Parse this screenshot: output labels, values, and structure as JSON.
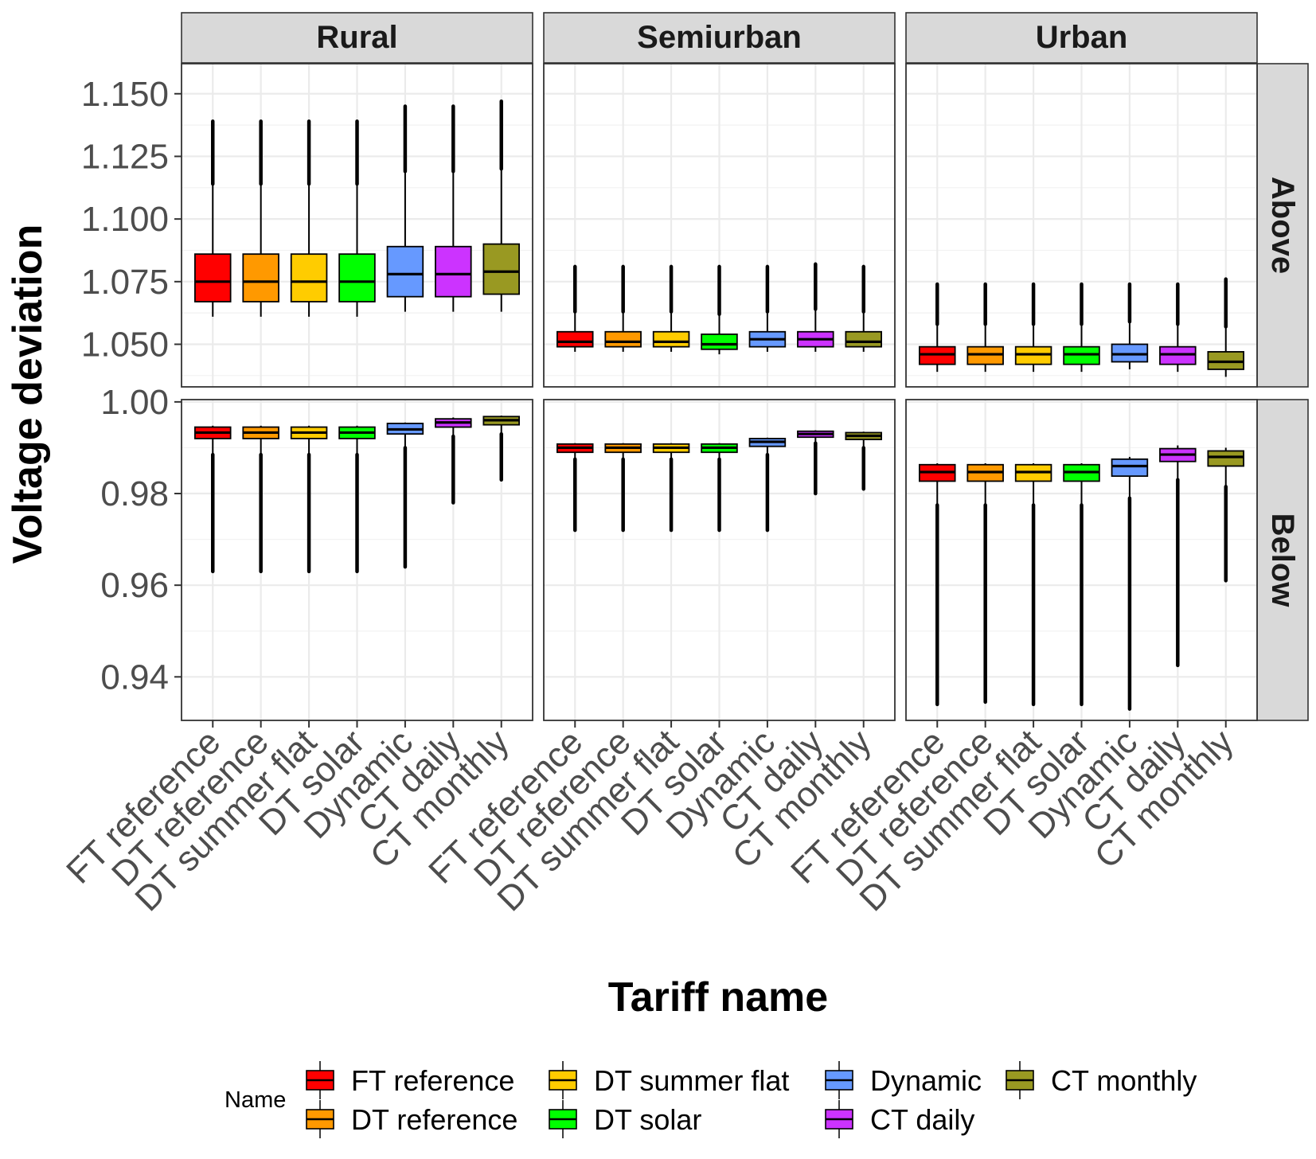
{
  "chart_data": {
    "type": "boxplot",
    "title": "",
    "xlabel": "Tariff name",
    "ylabel": "Voltage deviation",
    "categories": [
      "FT reference",
      "DT reference",
      "DT summer flat",
      "DT solar",
      "Dynamic",
      "CT daily",
      "CT monthly"
    ],
    "column_facets": [
      "Rural",
      "Semiurban",
      "Urban"
    ],
    "row_facets": [
      "Above",
      "Below"
    ],
    "colors": [
      "#ff0000",
      "#ff9900",
      "#ffcc00",
      "#00ff00",
      "#6699ff",
      "#cc33ff",
      "#999922"
    ],
    "rows": [
      {
        "name": "Above",
        "ylim": [
          1.033,
          1.162
        ],
        "ticks": [
          1.05,
          1.075,
          1.1,
          1.125,
          1.15
        ],
        "tick_labels": [
          "1.050",
          "1.075",
          "1.100",
          "1.125",
          "1.150"
        ],
        "panels": [
          {
            "facet": "Rural",
            "boxes": [
              {
                "q1": 1.067,
                "median": 1.075,
                "q3": 1.086,
                "whisker_low": 1.061,
                "whisker_high": 1.114,
                "outlier_max": 1.139
              },
              {
                "q1": 1.067,
                "median": 1.075,
                "q3": 1.086,
                "whisker_low": 1.061,
                "whisker_high": 1.114,
                "outlier_max": 1.139
              },
              {
                "q1": 1.067,
                "median": 1.075,
                "q3": 1.086,
                "whisker_low": 1.061,
                "whisker_high": 1.114,
                "outlier_max": 1.139
              },
              {
                "q1": 1.067,
                "median": 1.075,
                "q3": 1.086,
                "whisker_low": 1.061,
                "whisker_high": 1.114,
                "outlier_max": 1.139
              },
              {
                "q1": 1.069,
                "median": 1.078,
                "q3": 1.089,
                "whisker_low": 1.063,
                "whisker_high": 1.119,
                "outlier_max": 1.145
              },
              {
                "q1": 1.069,
                "median": 1.078,
                "q3": 1.089,
                "whisker_low": 1.063,
                "whisker_high": 1.119,
                "outlier_max": 1.145
              },
              {
                "q1": 1.07,
                "median": 1.079,
                "q3": 1.09,
                "whisker_low": 1.063,
                "whisker_high": 1.12,
                "outlier_max": 1.147
              }
            ]
          },
          {
            "facet": "Semiurban",
            "boxes": [
              {
                "q1": 1.049,
                "median": 1.051,
                "q3": 1.055,
                "whisker_low": 1.047,
                "whisker_high": 1.063,
                "outlier_max": 1.081
              },
              {
                "q1": 1.049,
                "median": 1.051,
                "q3": 1.055,
                "whisker_low": 1.047,
                "whisker_high": 1.063,
                "outlier_max": 1.081
              },
              {
                "q1": 1.049,
                "median": 1.051,
                "q3": 1.055,
                "whisker_low": 1.047,
                "whisker_high": 1.063,
                "outlier_max": 1.081
              },
              {
                "q1": 1.048,
                "median": 1.05,
                "q3": 1.054,
                "whisker_low": 1.046,
                "whisker_high": 1.062,
                "outlier_max": 1.081
              },
              {
                "q1": 1.049,
                "median": 1.052,
                "q3": 1.055,
                "whisker_low": 1.047,
                "whisker_high": 1.063,
                "outlier_max": 1.081
              },
              {
                "q1": 1.049,
                "median": 1.052,
                "q3": 1.055,
                "whisker_low": 1.047,
                "whisker_high": 1.064,
                "outlier_max": 1.082
              },
              {
                "q1": 1.049,
                "median": 1.051,
                "q3": 1.055,
                "whisker_low": 1.047,
                "whisker_high": 1.063,
                "outlier_max": 1.081
              }
            ]
          },
          {
            "facet": "Urban",
            "boxes": [
              {
                "q1": 1.042,
                "median": 1.046,
                "q3": 1.049,
                "whisker_low": 1.039,
                "whisker_high": 1.058,
                "outlier_max": 1.074
              },
              {
                "q1": 1.042,
                "median": 1.046,
                "q3": 1.049,
                "whisker_low": 1.039,
                "whisker_high": 1.058,
                "outlier_max": 1.074
              },
              {
                "q1": 1.042,
                "median": 1.046,
                "q3": 1.049,
                "whisker_low": 1.039,
                "whisker_high": 1.058,
                "outlier_max": 1.074
              },
              {
                "q1": 1.042,
                "median": 1.046,
                "q3": 1.049,
                "whisker_low": 1.039,
                "whisker_high": 1.058,
                "outlier_max": 1.074
              },
              {
                "q1": 1.043,
                "median": 1.046,
                "q3": 1.05,
                "whisker_low": 1.04,
                "whisker_high": 1.059,
                "outlier_max": 1.074
              },
              {
                "q1": 1.042,
                "median": 1.046,
                "q3": 1.049,
                "whisker_low": 1.039,
                "whisker_high": 1.058,
                "outlier_max": 1.074
              },
              {
                "q1": 1.04,
                "median": 1.043,
                "q3": 1.047,
                "whisker_low": 1.037,
                "whisker_high": 1.057,
                "outlier_max": 1.076
              }
            ]
          }
        ]
      },
      {
        "name": "Below",
        "ylim": [
          0.9305,
          1.0005
        ],
        "ticks": [
          0.94,
          0.96,
          0.98,
          1.0
        ],
        "tick_labels": [
          "0.94",
          "0.96",
          "0.98",
          "1.00"
        ],
        "panels": [
          {
            "facet": "Rural",
            "boxes": [
              {
                "q1": 0.992,
                "median": 0.9933,
                "q3": 0.9945,
                "whisker_low": 0.9885,
                "whisker_high": 0.9948,
                "outlier_min": 0.963
              },
              {
                "q1": 0.992,
                "median": 0.9933,
                "q3": 0.9945,
                "whisker_low": 0.9885,
                "whisker_high": 0.9948,
                "outlier_min": 0.963
              },
              {
                "q1": 0.992,
                "median": 0.9933,
                "q3": 0.9945,
                "whisker_low": 0.9885,
                "whisker_high": 0.9948,
                "outlier_min": 0.963
              },
              {
                "q1": 0.992,
                "median": 0.9933,
                "q3": 0.9945,
                "whisker_low": 0.9885,
                "whisker_high": 0.9948,
                "outlier_min": 0.963
              },
              {
                "q1": 0.993,
                "median": 0.994,
                "q3": 0.9953,
                "whisker_low": 0.99,
                "whisker_high": 0.9955,
                "outlier_min": 0.964
              },
              {
                "q1": 0.9945,
                "median": 0.9955,
                "q3": 0.9963,
                "whisker_low": 0.9925,
                "whisker_high": 0.9966,
                "outlier_min": 0.978
              },
              {
                "q1": 0.995,
                "median": 0.996,
                "q3": 0.9968,
                "whisker_low": 0.993,
                "whisker_high": 0.997,
                "outlier_min": 0.983
              }
            ]
          },
          {
            "facet": "Semiurban",
            "boxes": [
              {
                "q1": 0.989,
                "median": 0.99,
                "q3": 0.9908,
                "whisker_low": 0.9875,
                "whisker_high": 0.991,
                "outlier_min": 0.972
              },
              {
                "q1": 0.989,
                "median": 0.99,
                "q3": 0.9908,
                "whisker_low": 0.9875,
                "whisker_high": 0.991,
                "outlier_min": 0.972
              },
              {
                "q1": 0.989,
                "median": 0.99,
                "q3": 0.9908,
                "whisker_low": 0.9875,
                "whisker_high": 0.991,
                "outlier_min": 0.972
              },
              {
                "q1": 0.989,
                "median": 0.99,
                "q3": 0.9908,
                "whisker_low": 0.9875,
                "whisker_high": 0.991,
                "outlier_min": 0.972
              },
              {
                "q1": 0.9903,
                "median": 0.9913,
                "q3": 0.992,
                "whisker_low": 0.9885,
                "whisker_high": 0.9922,
                "outlier_min": 0.972
              },
              {
                "q1": 0.9923,
                "median": 0.993,
                "q3": 0.9936,
                "whisker_low": 0.991,
                "whisker_high": 0.9938,
                "outlier_min": 0.98
              },
              {
                "q1": 0.9918,
                "median": 0.9926,
                "q3": 0.9933,
                "whisker_low": 0.99,
                "whisker_high": 0.9935,
                "outlier_min": 0.981
              }
            ]
          },
          {
            "facet": "Urban",
            "boxes": [
              {
                "q1": 0.9827,
                "median": 0.9847,
                "q3": 0.9863,
                "whisker_low": 0.9775,
                "whisker_high": 0.9866,
                "outlier_min": 0.934
              },
              {
                "q1": 0.9827,
                "median": 0.9847,
                "q3": 0.9863,
                "whisker_low": 0.9775,
                "whisker_high": 0.9866,
                "outlier_min": 0.9345
              },
              {
                "q1": 0.9827,
                "median": 0.9847,
                "q3": 0.9863,
                "whisker_low": 0.9775,
                "whisker_high": 0.9866,
                "outlier_min": 0.934
              },
              {
                "q1": 0.9827,
                "median": 0.9847,
                "q3": 0.9863,
                "whisker_low": 0.9775,
                "whisker_high": 0.9866,
                "outlier_min": 0.934
              },
              {
                "q1": 0.9838,
                "median": 0.986,
                "q3": 0.9875,
                "whisker_low": 0.979,
                "whisker_high": 0.988,
                "outlier_min": 0.933
              },
              {
                "q1": 0.987,
                "median": 0.9885,
                "q3": 0.9898,
                "whisker_low": 0.983,
                "whisker_high": 0.9905,
                "outlier_min": 0.9425
              },
              {
                "q1": 0.986,
                "median": 0.988,
                "q3": 0.9893,
                "whisker_low": 0.9815,
                "whisker_high": 0.99,
                "outlier_min": 0.961
              }
            ]
          }
        ]
      }
    ],
    "legend": {
      "title": "Name",
      "position": "bottom",
      "entries": [
        "FT reference",
        "DT reference",
        "DT summer flat",
        "DT solar",
        "Dynamic",
        "CT daily",
        "CT monthly"
      ]
    },
    "grid": true
  }
}
